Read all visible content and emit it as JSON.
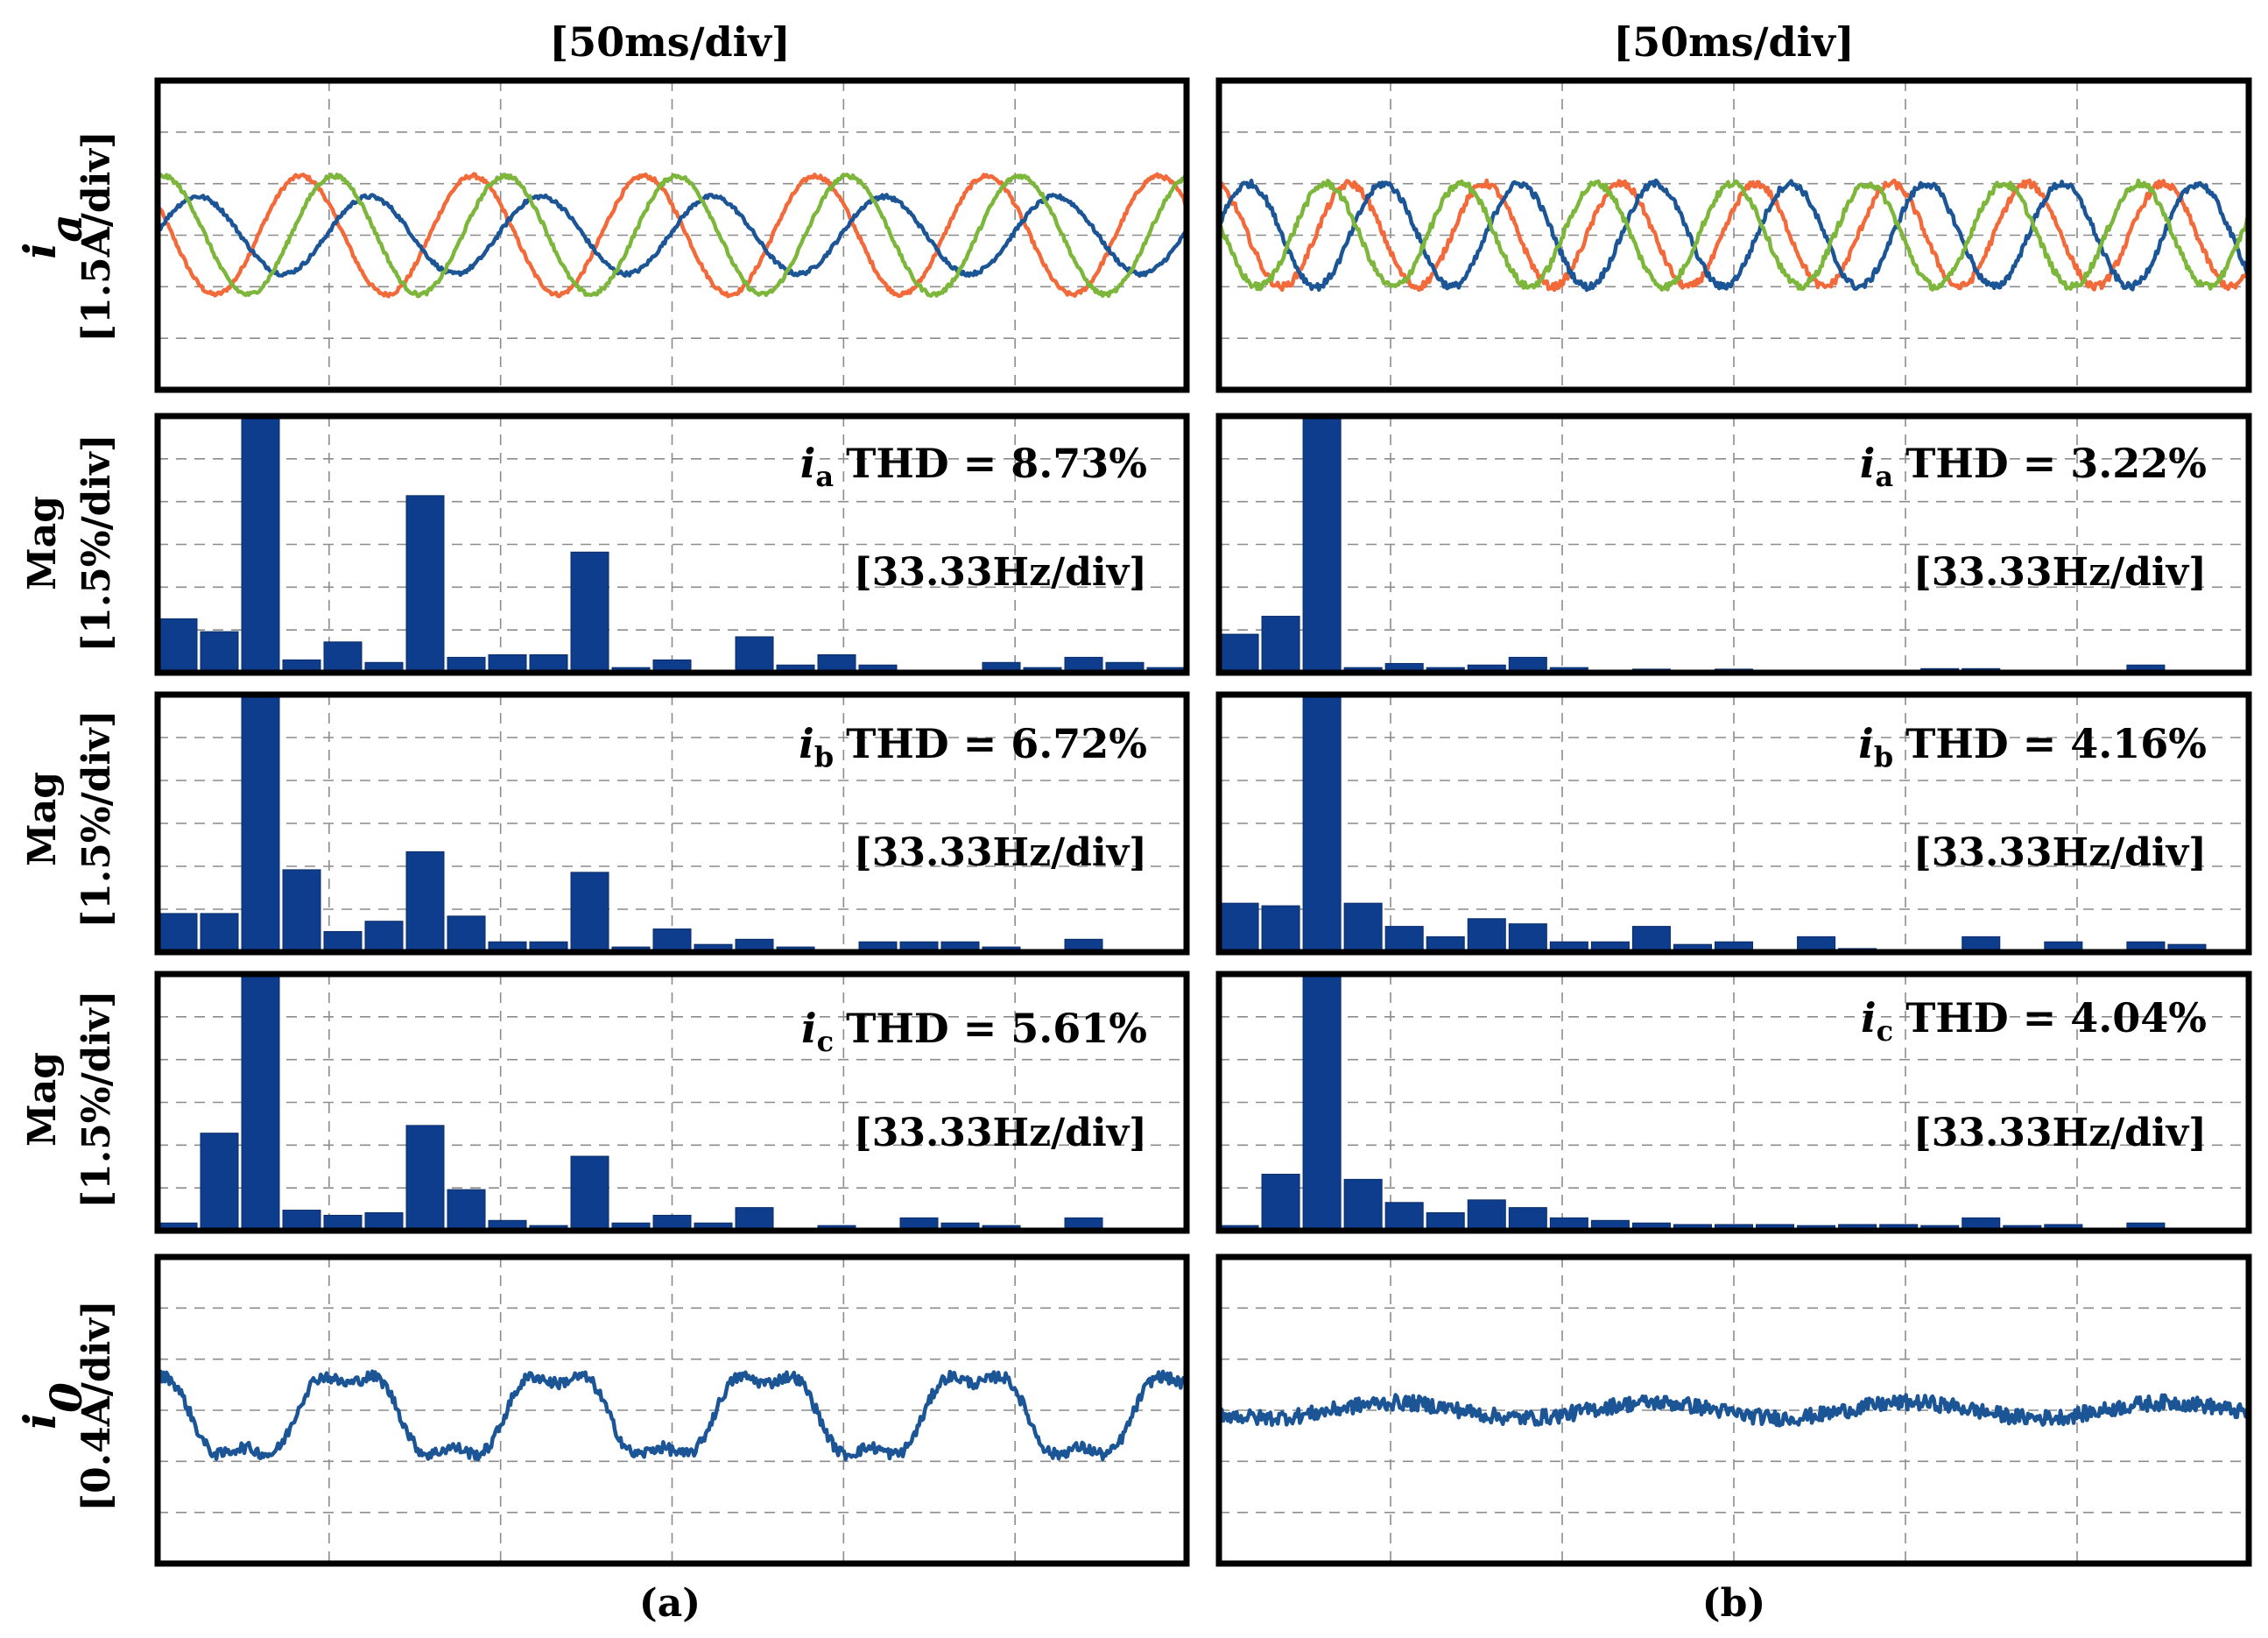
{
  "colors": {
    "phase_a": "#f26a3a",
    "phase_b": "#1b5596",
    "phase_c": "#7cb63a",
    "bars": "#0d3d8c",
    "zero_seq": "#1b5596"
  },
  "columns": [
    {
      "id": "a",
      "time_label": "[50ms/div]",
      "caption": "(a)"
    },
    {
      "id": "b",
      "time_label": "[50ms/div]",
      "caption": "(b)"
    }
  ],
  "y_labels": {
    "row1": {
      "symbol": "i",
      "sub": "a",
      "scale": "[1.5A/div]"
    },
    "row2": {
      "name": "Mag",
      "scale": "[1.5%/div]"
    },
    "row3": {
      "name": "Mag",
      "scale": "[1.5%/div]"
    },
    "row4": {
      "name": "Mag",
      "scale": "[1.5%/div]"
    },
    "row5": {
      "symbol": "i",
      "sub": "0",
      "scale": "[0.4A/div]"
    }
  },
  "chart_data": [
    {
      "id": "phase-currents-a",
      "type": "line",
      "column": "a",
      "xlabel": "[50ms/div]",
      "ylabel": "ia [1.5A/div]",
      "x_divisions": 6,
      "y_divisions": 6,
      "grid": true,
      "series": [
        {
          "name": "ia",
          "color": "#f26a3a",
          "amplitude_div": 1.15,
          "period_div": 1.0
        },
        {
          "name": "ib",
          "color": "#1b5596",
          "amplitude_div": 0.75,
          "period_div": 1.0
        },
        {
          "name": "ic",
          "color": "#7cb63a",
          "amplitude_div": 1.15,
          "period_div": 1.0
        }
      ]
    },
    {
      "id": "phase-currents-b",
      "type": "line",
      "column": "b",
      "xlabel": "[50ms/div]",
      "ylabel": "ia [1.5A/div]",
      "x_divisions": 6,
      "y_divisions": 6,
      "grid": true,
      "series": [
        {
          "name": "ia",
          "color": "#f26a3a",
          "amplitude_div": 1.0,
          "period_div": 0.79
        },
        {
          "name": "ib",
          "color": "#1b5596",
          "amplitude_div": 1.0,
          "period_div": 0.79
        },
        {
          "name": "ic",
          "color": "#7cb63a",
          "amplitude_div": 1.0,
          "period_div": 0.79
        }
      ]
    },
    {
      "id": "spectrum-ia-a",
      "type": "bar",
      "column": "a",
      "thd_symbol": "i",
      "thd_sub": "a",
      "thd_text": "THD = 8.73%",
      "freq_label": "[33.33Hz/div]",
      "ylabel": "Mag [1.5%/div]",
      "ylim_div": [
        0,
        5
      ],
      "values_div": [
        1.05,
        0.8,
        5.0,
        0.25,
        0.6,
        0.2,
        3.45,
        0.3,
        0.35,
        0.35,
        2.35,
        0.1,
        0.25,
        0.0,
        0.7,
        0.15,
        0.35,
        0.15,
        0.0,
        0.0,
        0.2,
        0.1,
        0.3,
        0.2,
        0.1
      ]
    },
    {
      "id": "spectrum-ib-a",
      "type": "bar",
      "column": "a",
      "thd_symbol": "i",
      "thd_sub": "b",
      "thd_text": "THD = 6.72%",
      "freq_label": "[33.33Hz/div]",
      "ylabel": "Mag [1.5%/div]",
      "ylim_div": [
        0,
        5
      ],
      "values_div": [
        0.75,
        0.75,
        5.0,
        1.6,
        0.4,
        0.6,
        1.95,
        0.7,
        0.2,
        0.2,
        1.55,
        0.1,
        0.45,
        0.15,
        0.25,
        0.1,
        0.0,
        0.2,
        0.2,
        0.2,
        0.1,
        0.0,
        0.25,
        0.0,
        0.0
      ]
    },
    {
      "id": "spectrum-ic-a",
      "type": "bar",
      "column": "a",
      "thd_symbol": "i",
      "thd_sub": "c",
      "thd_text": "THD = 5.61%",
      "freq_label": "[33.33Hz/div]",
      "ylabel": "Mag [1.5%/div]",
      "ylim_div": [
        0,
        5
      ],
      "values_div": [
        0.15,
        1.9,
        5.0,
        0.4,
        0.3,
        0.35,
        2.05,
        0.8,
        0.2,
        0.1,
        1.45,
        0.15,
        0.3,
        0.15,
        0.45,
        0.0,
        0.1,
        0.0,
        0.25,
        0.15,
        0.1,
        0.0,
        0.25,
        0.0,
        0.0
      ]
    },
    {
      "id": "spectrum-ia-b",
      "type": "bar",
      "column": "b",
      "thd_symbol": "i",
      "thd_sub": "a",
      "thd_text": "THD = 3.22%",
      "freq_label": "[33.33Hz/div]",
      "ylabel": "Mag [1.5%/div]",
      "ylim_div": [
        0,
        5
      ],
      "values_div": [
        0.75,
        1.1,
        5.0,
        0.1,
        0.18,
        0.1,
        0.15,
        0.3,
        0.1,
        0.0,
        0.07,
        0.0,
        0.07,
        0.0,
        0.0,
        0.0,
        0.0,
        0.08,
        0.08,
        0.0,
        0.05,
        0.0,
        0.15,
        0.0,
        0.0
      ]
    },
    {
      "id": "spectrum-ib-b",
      "type": "bar",
      "column": "b",
      "thd_symbol": "i",
      "thd_sub": "b",
      "thd_text": "THD = 4.16%",
      "freq_label": "[33.33Hz/div]",
      "ylabel": "Mag [1.5%/div]",
      "ylim_div": [
        0,
        5
      ],
      "values_div": [
        0.95,
        0.9,
        5.0,
        0.95,
        0.5,
        0.3,
        0.65,
        0.55,
        0.2,
        0.2,
        0.5,
        0.15,
        0.2,
        0.0,
        0.3,
        0.07,
        0.0,
        0.0,
        0.3,
        0.0,
        0.2,
        0.0,
        0.2,
        0.15,
        0.05
      ]
    },
    {
      "id": "spectrum-ic-b",
      "type": "bar",
      "column": "b",
      "thd_symbol": "i",
      "thd_sub": "c",
      "thd_text": "THD = 4.04%",
      "freq_label": "[33.33Hz/div]",
      "ylabel": "Mag [1.5%/div]",
      "ylim_div": [
        0,
        5
      ],
      "values_div": [
        0.1,
        1.1,
        5.0,
        1.0,
        0.55,
        0.35,
        0.6,
        0.45,
        0.25,
        0.2,
        0.15,
        0.12,
        0.12,
        0.12,
        0.1,
        0.12,
        0.12,
        0.1,
        0.25,
        0.1,
        0.12,
        0.0,
        0.15,
        0.0,
        0.0
      ]
    },
    {
      "id": "zero-seq-a",
      "type": "line",
      "column": "a",
      "xlabel": "[50ms/div]",
      "ylabel": "i0 [0.4A/div]",
      "x_divisions": 6,
      "y_divisions": 6,
      "grid": true,
      "series": [
        {
          "name": "i0",
          "color": "#1b5596",
          "amplitude_div": 1.0,
          "period_div": 1.22
        }
      ]
    },
    {
      "id": "zero-seq-b",
      "type": "line",
      "column": "b",
      "xlabel": "[50ms/div]",
      "ylabel": "i0 [0.4A/div]",
      "x_divisions": 6,
      "y_divisions": 6,
      "grid": true,
      "series": [
        {
          "name": "i0",
          "color": "#1b5596",
          "amplitude_div": 0.15,
          "period_div": 1.5
        }
      ]
    }
  ]
}
